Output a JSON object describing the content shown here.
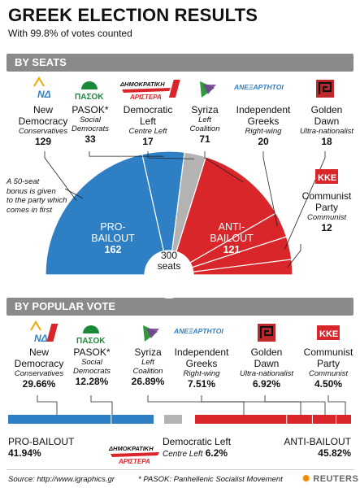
{
  "title": "GREEK ELECTION RESULTS",
  "subtitle": "With 99.8% of votes counted",
  "sections": {
    "seats": "BY SEATS",
    "vote": "BY POPULAR VOTE"
  },
  "logos": {
    "nd": "ΝΔ",
    "pasok": "ΠΑΣΟΚ",
    "dimar_top": "ΔΗΜΟΚΡΑΤΙΚΗ",
    "dimar_bottom": "ΑΡΙΣΤΕΡΑ",
    "anel": "ΑΝΕΞΑΡΤΗΤΟΙ",
    "kke": "ΚΚΕ"
  },
  "seats_parties": [
    {
      "id": "nd",
      "name1": "New",
      "name2": "Democracy",
      "desc1": "Conservatives",
      "desc2": "",
      "value": "129"
    },
    {
      "id": "pasok",
      "name1": "PASOK*",
      "name2": "",
      "desc1": "Social",
      "desc2": "Democrats",
      "value": "33"
    },
    {
      "id": "dimar",
      "name1": "Democratic",
      "name2": "Left",
      "desc1": "Centre Left",
      "desc2": "",
      "value": "17"
    },
    {
      "id": "syriza",
      "name1": "Syriza",
      "name2": "",
      "desc1": "Left",
      "desc2": "Coalition",
      "value": "71"
    },
    {
      "id": "anel",
      "name1": "Independent",
      "name2": "Greeks",
      "desc1": "Right-wing",
      "desc2": "",
      "value": "20"
    },
    {
      "id": "gd",
      "name1": "Golden",
      "name2": "Dawn",
      "desc1": "Ultra-nationalist",
      "desc2": "",
      "value": "18"
    },
    {
      "id": "kke",
      "name1": "Communist",
      "name2": "Party",
      "desc1": "Communist",
      "desc2": "",
      "value": "12"
    }
  ],
  "bonus_note": [
    "A 50-seat",
    "bonus is given",
    "to the party which",
    "comes in first"
  ],
  "pro_label": [
    "PRO-",
    "BAILOUT",
    "162"
  ],
  "anti_label": [
    "ANTI-",
    "BAILOUT",
    "121"
  ],
  "total_label": [
    "300",
    "seats"
  ],
  "vote_parties": [
    {
      "id": "nd",
      "name1": "New",
      "name2": "Democracy",
      "desc1": "Conservatives",
      "desc2": "",
      "value": "29.66%"
    },
    {
      "id": "pasok",
      "name1": "PASOK*",
      "name2": "",
      "desc1": "Social",
      "desc2": "Democrats",
      "value": "12.28%"
    },
    {
      "id": "syriza",
      "name1": "Syriza",
      "name2": "",
      "desc1": "Left",
      "desc2": "Coalition",
      "value": "26.89%"
    },
    {
      "id": "anel",
      "name1": "Independent",
      "name2": "Greeks",
      "desc1": "Right-wing",
      "desc2": "",
      "value": "7.51%"
    },
    {
      "id": "gd",
      "name1": "Golden",
      "name2": "Dawn",
      "desc1": "Ultra-nationalist",
      "desc2": "",
      "value": "6.92%"
    },
    {
      "id": "kke",
      "name1": "Communist",
      "name2": "Party",
      "desc1": "Communist",
      "desc2": "",
      "value": "4.50%"
    }
  ],
  "vote_summary": {
    "pro_label": "PRO-BAILOUT",
    "pro_value": "41.94%",
    "dl_label": "Democratic Left",
    "dl_sub": "Centre Left",
    "dl_value": "6.2%",
    "anti_label": "ANTI-BAILOUT",
    "anti_value": "45.82%"
  },
  "footer": {
    "source": "Source: http://www.igraphics.gr",
    "note": "* PASOK: Panhellenic Socialist Movement",
    "brand": "REUTERS"
  },
  "colors": {
    "pro": "#2e7fc4",
    "anti": "#d8262b",
    "dl": "#b3b3b3",
    "section": "#8a8a8a"
  },
  "chart_data": [
    {
      "type": "pie",
      "title": "BY SEATS",
      "total": 300,
      "slices": [
        {
          "name": "New Democracy",
          "value": 129,
          "group": "pro"
        },
        {
          "name": "PASOK",
          "value": 33,
          "group": "pro"
        },
        {
          "name": "Democratic Left",
          "value": 17,
          "group": "neutral"
        },
        {
          "name": "Syriza",
          "value": 71,
          "group": "anti"
        },
        {
          "name": "Independent Greeks",
          "value": 20,
          "group": "anti"
        },
        {
          "name": "Golden Dawn",
          "value": 18,
          "group": "anti"
        },
        {
          "name": "Communist Party",
          "value": 12,
          "group": "anti"
        }
      ],
      "groups": {
        "pro": 162,
        "anti": 121
      }
    },
    {
      "type": "bar",
      "title": "BY POPULAR VOTE",
      "categories": [
        "New Democracy",
        "PASOK",
        "Democratic Left",
        "Syriza",
        "Independent Greeks",
        "Golden Dawn",
        "Communist Party"
      ],
      "values": [
        29.66,
        12.28,
        6.2,
        26.89,
        7.51,
        6.92,
        4.5
      ],
      "groups": {
        "pro": 41.94,
        "neutral": 6.2,
        "anti": 45.82
      }
    }
  ]
}
